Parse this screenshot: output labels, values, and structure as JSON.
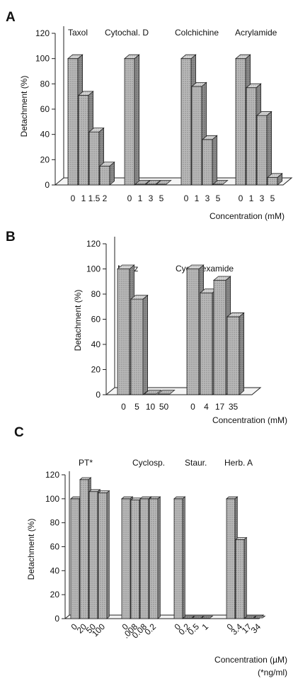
{
  "chart_data": [
    {
      "type": "bar",
      "panel": "A",
      "ylabel": "Detachment (%)",
      "xlabel": "Concentration (mM)",
      "ylim": [
        0,
        120
      ],
      "yticks": [
        0,
        20,
        40,
        60,
        80,
        100,
        120
      ],
      "groups": [
        {
          "name": "Taxol",
          "categories": [
            "0",
            "1",
            "1.5",
            "2"
          ],
          "values": [
            100,
            71,
            42,
            15
          ]
        },
        {
          "name": "Cytochal. D",
          "categories": [
            "0",
            "1",
            "3",
            "5"
          ],
          "values": [
            100,
            0,
            0,
            0
          ]
        },
        {
          "name": "Colchichine",
          "categories": [
            "0",
            "1",
            "3",
            "5"
          ],
          "values": [
            100,
            78,
            36,
            0
          ]
        },
        {
          "name": "Acrylamide",
          "categories": [
            "0",
            "1",
            "3",
            "5"
          ],
          "values": [
            100,
            77,
            55,
            6
          ]
        }
      ]
    },
    {
      "type": "bar",
      "panel": "B",
      "ylabel": "Detachment (%)",
      "xlabel": "Concentration (mM)",
      "ylim": [
        0,
        120
      ],
      "yticks": [
        0,
        20,
        40,
        60,
        80,
        100,
        120
      ],
      "groups": [
        {
          "name": "NaAz",
          "categories": [
            "0",
            "5",
            "10",
            "50"
          ],
          "values": [
            100,
            76,
            0,
            0
          ]
        },
        {
          "name": "Cyclohexamide",
          "categories": [
            "0",
            "4",
            "17",
            "35"
          ],
          "values": [
            100,
            81,
            91,
            62
          ]
        }
      ]
    },
    {
      "type": "bar",
      "panel": "C",
      "ylabel": "Detachment (%)",
      "xlabel": "Concentration (µM)",
      "xnote": "(*ng/ml)",
      "ylim": [
        0,
        120
      ],
      "yticks": [
        0,
        20,
        40,
        60,
        80,
        100,
        120
      ],
      "groups": [
        {
          "name": "PT*",
          "categories": [
            "0",
            "20",
            "50",
            "100"
          ],
          "values": [
            100,
            116,
            106,
            105
          ]
        },
        {
          "name": "Cyclosp.",
          "categories": [
            "0",
            ".008",
            "0.08",
            "0.2"
          ],
          "values": [
            100,
            99,
            100,
            100
          ]
        },
        {
          "name": "Staur.",
          "categories": [
            "0",
            "0.2",
            "0.5",
            "1"
          ],
          "values": [
            100,
            0,
            0,
            0
          ]
        },
        {
          "name": "Herb. A",
          "categories": [
            "0",
            "3.4",
            "17",
            "34"
          ],
          "values": [
            100,
            66,
            0,
            0
          ]
        }
      ]
    }
  ]
}
